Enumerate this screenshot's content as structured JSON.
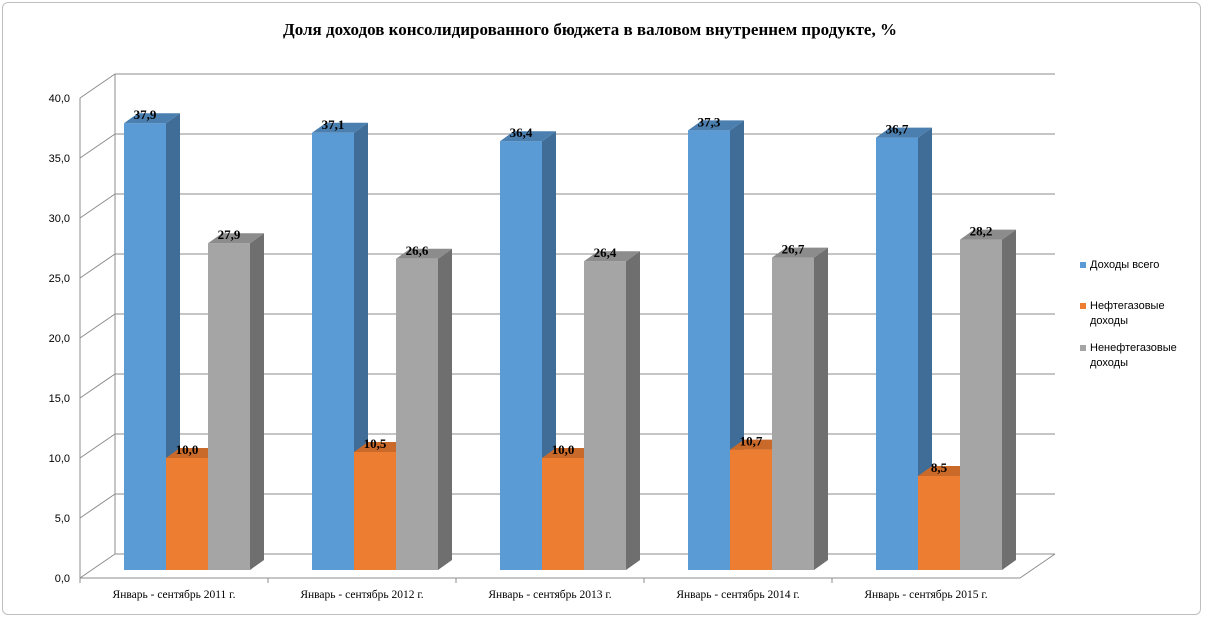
{
  "chart_data": {
    "type": "bar",
    "title": "Доля доходов консолидированного бюджета в валовом внутреннем продукте, %",
    "categories": [
      "Январь - сентябрь 2011  г.",
      "Январь - сентябрь 2012  г.",
      "Январь - сентябрь 2013  г.",
      "Январь - сентябрь 2014  г.",
      "Январь - сентябрь 2015  г."
    ],
    "series": [
      {
        "name": "Доходы всего",
        "values": [
          37.9,
          37.1,
          36.4,
          37.3,
          36.7
        ],
        "labels": [
          "37,9",
          "37,1",
          "36,4",
          "37,3",
          "36,7"
        ],
        "color": "#5b9bd5",
        "side_color": "#3f6d97",
        "top_color": "#4a7fb0"
      },
      {
        "name": "Нефтегазовые доходы",
        "values": [
          10.0,
          10.5,
          10.0,
          10.7,
          8.5
        ],
        "labels": [
          "10,0",
          "10,5",
          "10,0",
          "10,7",
          "8,5"
        ],
        "color": "#ed7d31",
        "side_color": "#a85720",
        "top_color": "#c9692a"
      },
      {
        "name": "Ненефтегазовые доходы",
        "values": [
          27.9,
          26.6,
          26.4,
          26.7,
          28.2
        ],
        "labels": [
          "27,9",
          "26,6",
          "26,4",
          "26,7",
          "28,2"
        ],
        "color": "#a5a5a5",
        "side_color": "#6f6f6f",
        "top_color": "#8c8c8c"
      }
    ],
    "yticks": [
      "0,0",
      "5,0",
      "10,0",
      "15,0",
      "20,0",
      "25,0",
      "30,0",
      "35,0",
      "40,0"
    ],
    "ylim": [
      0,
      40
    ],
    "grid": true,
    "legend_position": "right",
    "style": "3d-clustered-column"
  }
}
